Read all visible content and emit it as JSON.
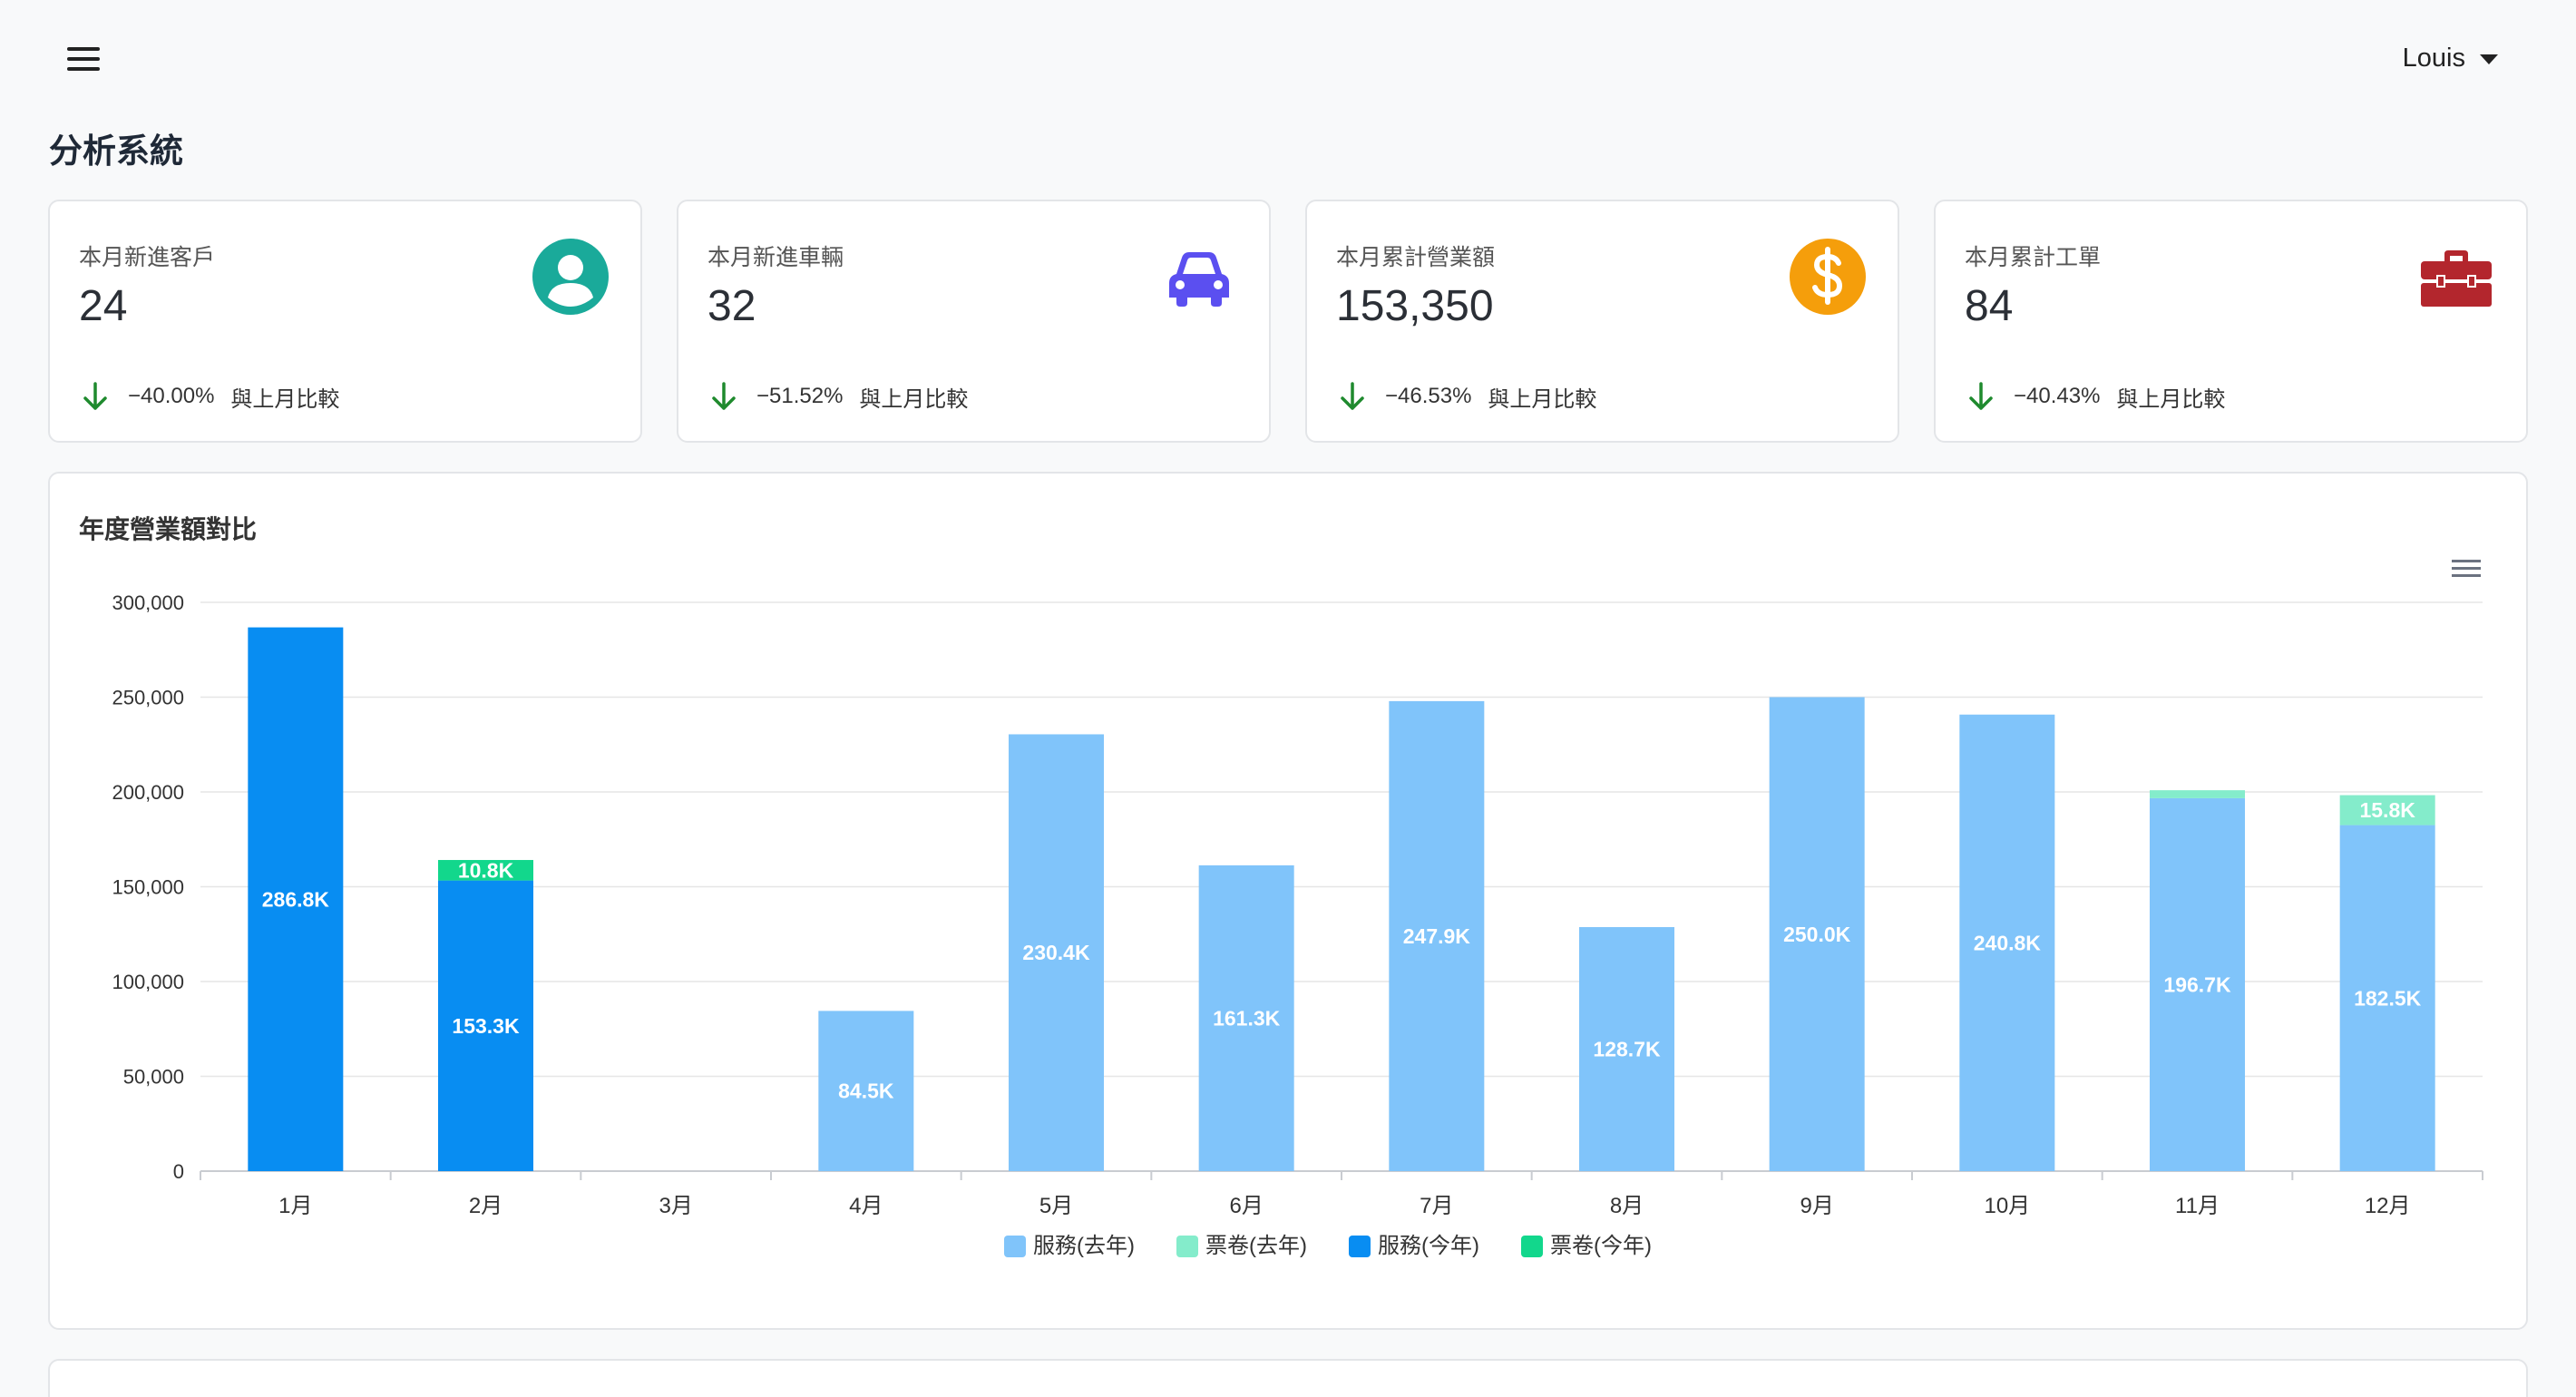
{
  "header": {
    "menu_icon": "hamburger-icon",
    "user_name": "Louis",
    "user_caret_icon": "caret-down-icon"
  },
  "page_title": "分析系統",
  "cards": [
    {
      "label": "本月新進客戶",
      "value": "24",
      "change": "−40.00%",
      "compare": "與上月比較",
      "icon": "user-icon",
      "icon_color": "#1aaa9a"
    },
    {
      "label": "本月新進車輛",
      "value": "32",
      "change": "−51.52%",
      "compare": "與上月比較",
      "icon": "car-icon",
      "icon_color": "#5b4ff0"
    },
    {
      "label": "本月累計營業額",
      "value": "153,350",
      "change": "−46.53%",
      "compare": "與上月比較",
      "icon": "dollar-icon",
      "icon_color": "#f59e0b"
    },
    {
      "label": "本月累計工單",
      "value": "84",
      "change": "−40.43%",
      "compare": "與上月比較",
      "icon": "toolbox-icon",
      "icon_color": "#b3262d"
    }
  ],
  "trend_color": "#1f8a2e",
  "chart": {
    "title": "年度營業額對比",
    "menu_icon": "chart-menu-icon"
  },
  "chart_data": {
    "type": "bar",
    "stacked": true,
    "title": "年度營業額對比",
    "xlabel": "",
    "ylabel": "",
    "ylim": [
      0,
      300000
    ],
    "yticks": [
      "0",
      "50,000",
      "100,000",
      "150,000",
      "200,000",
      "250,000",
      "300,000"
    ],
    "grid": true,
    "legend_position": "bottom",
    "categories": [
      "1月",
      "2月",
      "3月",
      "4月",
      "5月",
      "6月",
      "7月",
      "8月",
      "9月",
      "10月",
      "11月",
      "12月"
    ],
    "series": [
      {
        "name": "服務(去年)",
        "color": "#80c4fa",
        "values": [
          0,
          0,
          0,
          84500,
          230400,
          161300,
          247900,
          128700,
          250000,
          240800,
          196700,
          182500
        ],
        "labels": [
          "",
          "",
          "",
          "84.5K",
          "230.4K",
          "161.3K",
          "247.9K",
          "128.7K",
          "250.0K",
          "240.8K",
          "196.7K",
          "182.5K"
        ]
      },
      {
        "name": "票卷(去年)",
        "color": "#84eccb",
        "values": [
          0,
          0,
          0,
          0,
          0,
          0,
          0,
          0,
          0,
          0,
          4200,
          15800
        ],
        "labels": [
          "",
          "",
          "",
          "",
          "",
          "",
          "",
          "",
          "",
          "",
          "",
          "15.8K"
        ]
      },
      {
        "name": "服務(今年)",
        "color": "#088df2",
        "values": [
          286800,
          153300,
          0,
          0,
          0,
          0,
          0,
          0,
          0,
          0,
          0,
          0
        ],
        "labels": [
          "286.8K",
          "153.3K",
          "",
          "",
          "",
          "",
          "",
          "",
          "",
          "",
          "",
          ""
        ]
      },
      {
        "name": "票卷(今年)",
        "color": "#12d78c",
        "values": [
          0,
          10800,
          0,
          0,
          0,
          0,
          0,
          0,
          0,
          0,
          0,
          0
        ],
        "labels": [
          "",
          "10.8K",
          "",
          "",
          "",
          "",
          "",
          "",
          "",
          "",
          "",
          ""
        ]
      }
    ]
  }
}
